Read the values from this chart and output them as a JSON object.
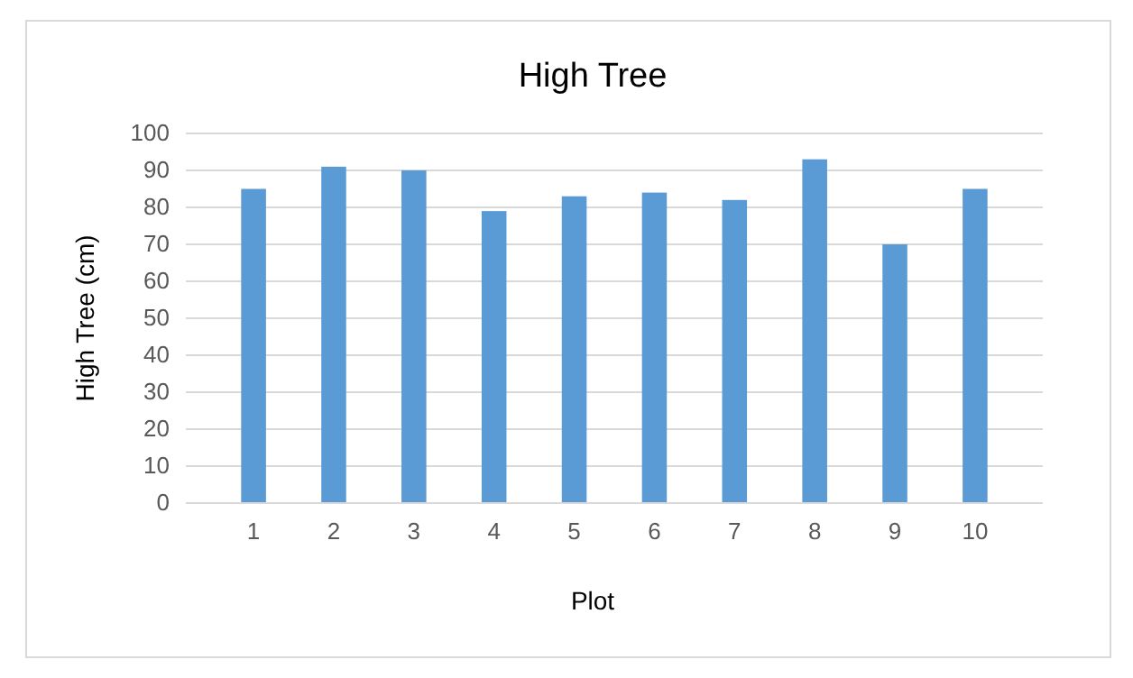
{
  "chart_data": {
    "type": "bar",
    "title": "High Tree",
    "xlabel": "Plot",
    "ylabel": "High Tree (cm)",
    "categories": [
      "1",
      "2",
      "3",
      "4",
      "5",
      "6",
      "7",
      "8",
      "9",
      "10"
    ],
    "values": [
      85,
      91,
      90,
      79,
      83,
      84,
      82,
      93,
      70,
      85
    ],
    "color": "#5b9bd5",
    "ylim": [
      0,
      100
    ],
    "yticks": [
      0,
      10,
      20,
      30,
      40,
      50,
      60,
      70,
      80,
      90,
      100
    ],
    "grid": "y"
  }
}
